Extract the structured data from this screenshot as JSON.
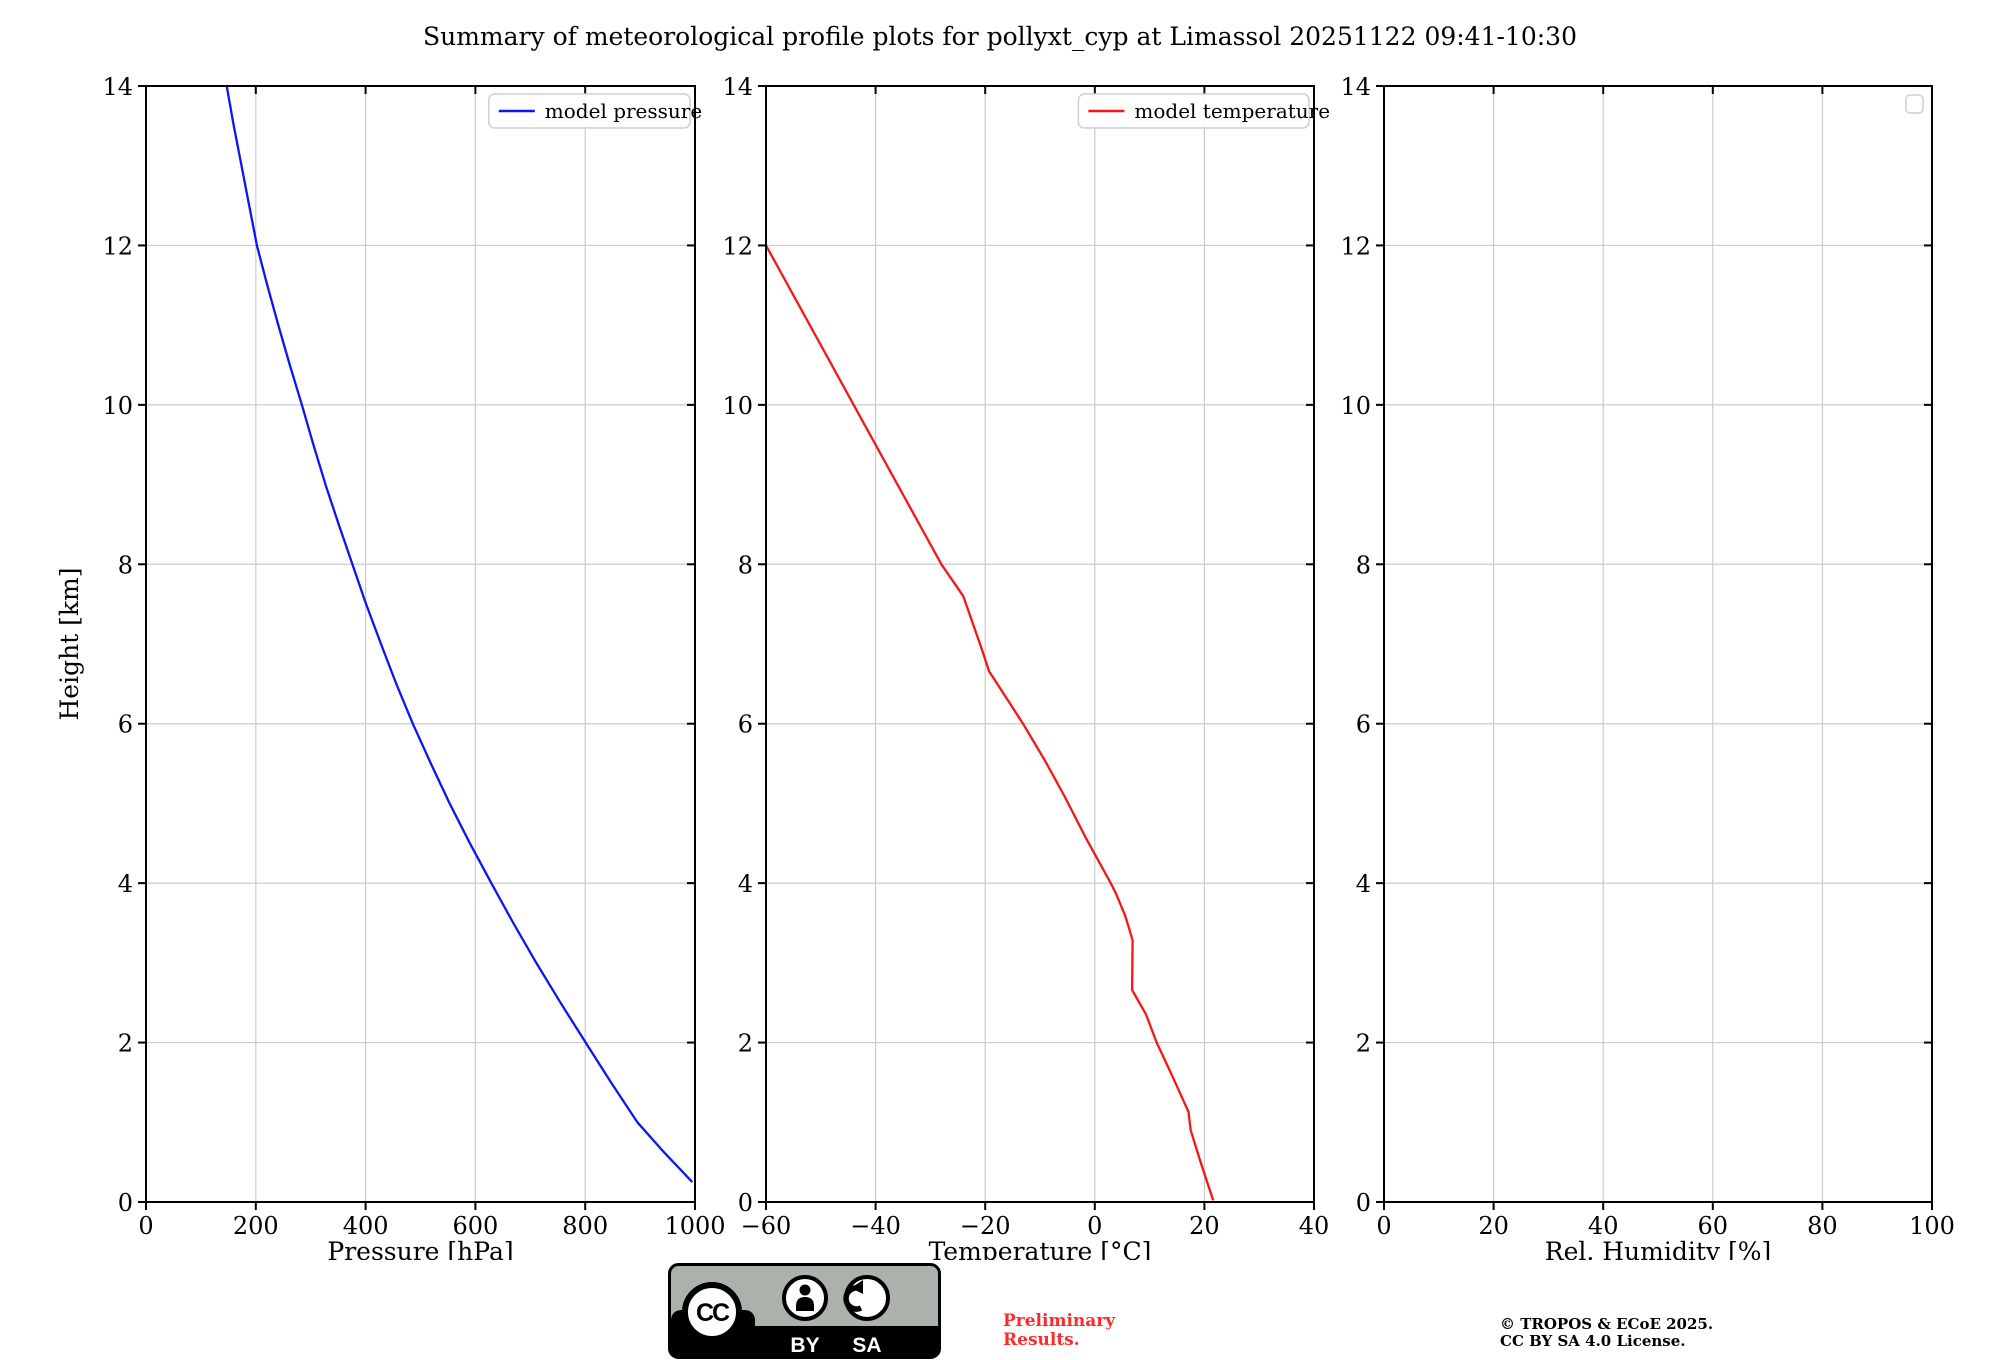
{
  "header": {
    "title": "Summary of meteorological profile plots for pollyxt_cyp at Limassol 20251122 09:41-10:30"
  },
  "chart_data": {
    "type": "line",
    "title": "Summary of meteorological profile plots for pollyxt_cyp at Limassol 20251122 09:41-10:30",
    "grid": true,
    "legend_position": "upper right",
    "shared_y": {
      "label": "Height [km]",
      "lim": [
        0,
        14
      ],
      "ticks": [
        0,
        2,
        4,
        6,
        8,
        10,
        12,
        14
      ],
      "tick_labels": [
        "0",
        "2",
        "4",
        "6",
        "8",
        "10",
        "12",
        "14"
      ]
    },
    "colors": {
      "grid": "#cccccc",
      "axis": "#000000"
    },
    "plots": [
      {
        "id": "pressure",
        "xlabel": "Pressure [hPa]",
        "ylabel": "Height [km]",
        "xlim": [
          0,
          1000
        ],
        "x_ticks": [
          0,
          200,
          400,
          600,
          800,
          1000
        ],
        "x_tick_labels": [
          "0",
          "200",
          "400",
          "600",
          "800",
          "1000"
        ],
        "legend": [
          {
            "label": "model pressure",
            "color": "#0b16f4"
          }
        ],
        "series": [
          {
            "name": "model pressure",
            "color": "#0b16f4",
            "points": [
              [
                147,
                14
              ],
              [
                160,
                13.5
              ],
              [
                174,
                13
              ],
              [
                188,
                12.5
              ],
              [
                202,
                12
              ],
              [
                221,
                11.5
              ],
              [
                241,
                11
              ],
              [
                262,
                10.5
              ],
              [
                284,
                10
              ],
              [
                305,
                9.5
              ],
              [
                327,
                9
              ],
              [
                351,
                8.5
              ],
              [
                376,
                8
              ],
              [
                401,
                7.5
              ],
              [
                428,
                7
              ],
              [
                456,
                6.5
              ],
              [
                486,
                6
              ],
              [
                519,
                5.5
              ],
              [
                553,
                5
              ],
              [
                590,
                4.5
              ],
              [
                629,
                4
              ],
              [
                669,
                3.5
              ],
              [
                711,
                3
              ],
              [
                755,
                2.5
              ],
              [
                801,
                2
              ],
              [
                847,
                1.5
              ],
              [
                895,
                1
              ],
              [
                944,
                0.62
              ],
              [
                995,
                0.25
              ]
            ]
          }
        ]
      },
      {
        "id": "temperature",
        "xlabel": "Temperature [°C]",
        "xlim": [
          -60,
          40
        ],
        "x_ticks": [
          -60,
          -40,
          -20,
          0,
          20,
          40
        ],
        "x_tick_labels": [
          "−60",
          "−40",
          "−20",
          "0",
          "20",
          "40"
        ],
        "legend": [
          {
            "label": "model temperature",
            "color": "#f51616"
          }
        ],
        "series": [
          {
            "name": "model temperature",
            "color": "#f51616",
            "points": [
              [
                -60,
                12
              ],
              [
                -52,
                11
              ],
              [
                -44,
                10
              ],
              [
                -36,
                9
              ],
              [
                -28,
                8
              ],
              [
                -24,
                7.6
              ],
              [
                -20.7,
                6.95
              ],
              [
                -19.3,
                6.66
              ],
              [
                -13.1,
                6
              ],
              [
                -9.2,
                5.55
              ],
              [
                -5.6,
                5.1
              ],
              [
                -1.5,
                4.55
              ],
              [
                2.9,
                4
              ],
              [
                3.8,
                3.88
              ],
              [
                5.5,
                3.6
              ],
              [
                6.5,
                3.38
              ],
              [
                6.9,
                3.28
              ],
              [
                6.8,
                2.66
              ],
              [
                9.3,
                2.36
              ],
              [
                11.3,
                2.0
              ],
              [
                13.2,
                1.72
              ],
              [
                15.2,
                1.42
              ],
              [
                17.1,
                1.13
              ],
              [
                17.5,
                0.9
              ],
              [
                19.3,
                0.5
              ],
              [
                21.6,
                0.02
              ]
            ]
          }
        ]
      },
      {
        "id": "humidity",
        "xlabel": "Rel. Humidity [%]",
        "xlim": [
          0,
          100
        ],
        "x_ticks": [
          0,
          20,
          40,
          60,
          80,
          100
        ],
        "x_tick_labels": [
          "0",
          "20",
          "40",
          "60",
          "80",
          "100"
        ],
        "legend": [],
        "legend_empty": true,
        "series": []
      }
    ]
  },
  "footer": {
    "preliminary_line1": "Preliminary",
    "preliminary_line2": "Results.",
    "copyright_line1": "© TROPOS & ECoE 2025.",
    "copyright_line2": "CC BY SA 4.0 License.",
    "badge": {
      "cc": "CC",
      "by": "BY",
      "sa": "SA"
    }
  }
}
